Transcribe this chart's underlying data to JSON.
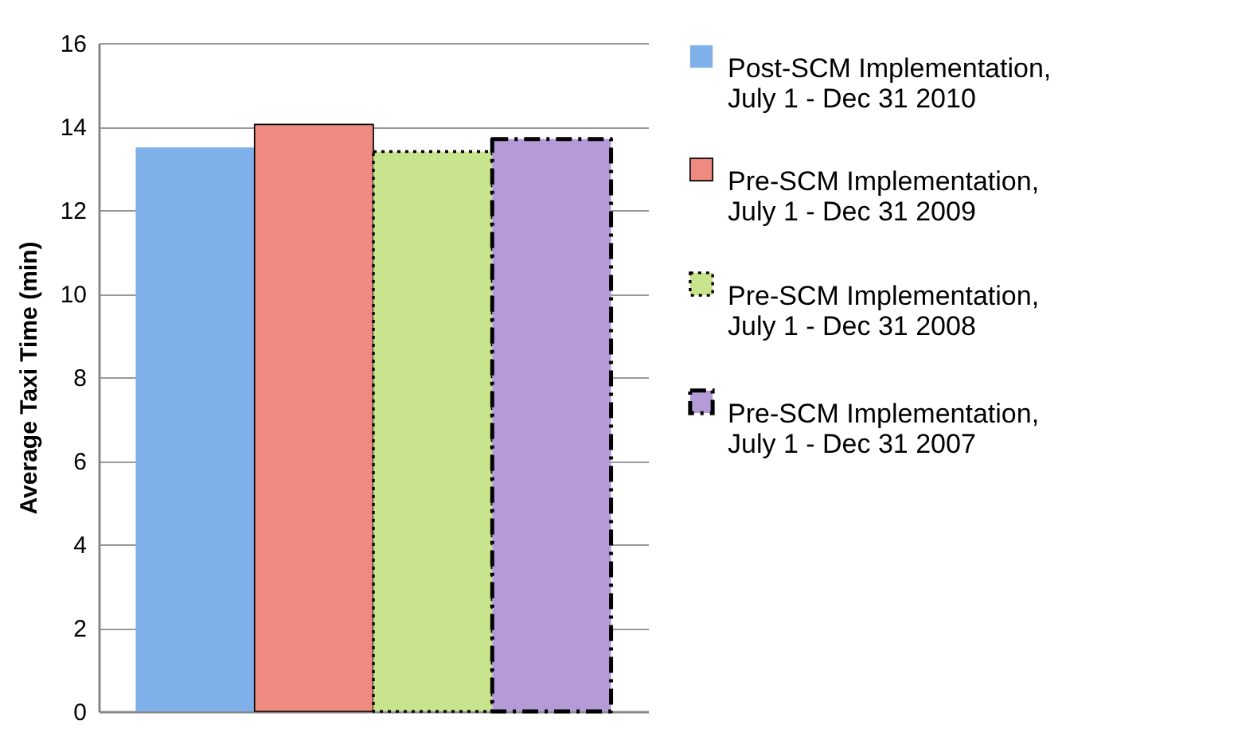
{
  "chart_data": {
    "type": "bar",
    "ylabel": "Average Taxi Time (min)",
    "categories": [
      null
    ],
    "series": [
      {
        "name": "Post-SCM Implementation, July 1 - Dec 31 2010",
        "color": "#7fb0ea",
        "values": [
          13.5
        ]
      },
      {
        "name": "Pre-SCM Implementation, July 1 - Dec 31 2009",
        "color": "#ee8a80",
        "values": [
          14.05
        ],
        "line_style": "solid"
      },
      {
        "name": "Pre-SCM Implementation, July 1 - Dec 31 2008",
        "color": "#c8e58d",
        "values": [
          13.4
        ],
        "line_style": "dotted"
      },
      {
        "name": "Pre-SCM Implementation, July 1 - Dec 31 2007",
        "color": "#b59ad8",
        "values": [
          13.7
        ],
        "line_style": "dashdot"
      }
    ],
    "ylim": [
      0,
      16
    ],
    "yticks": [
      0,
      2,
      4,
      6,
      8,
      10,
      12,
      14,
      16
    ],
    "grid": "y",
    "legend": "right"
  }
}
